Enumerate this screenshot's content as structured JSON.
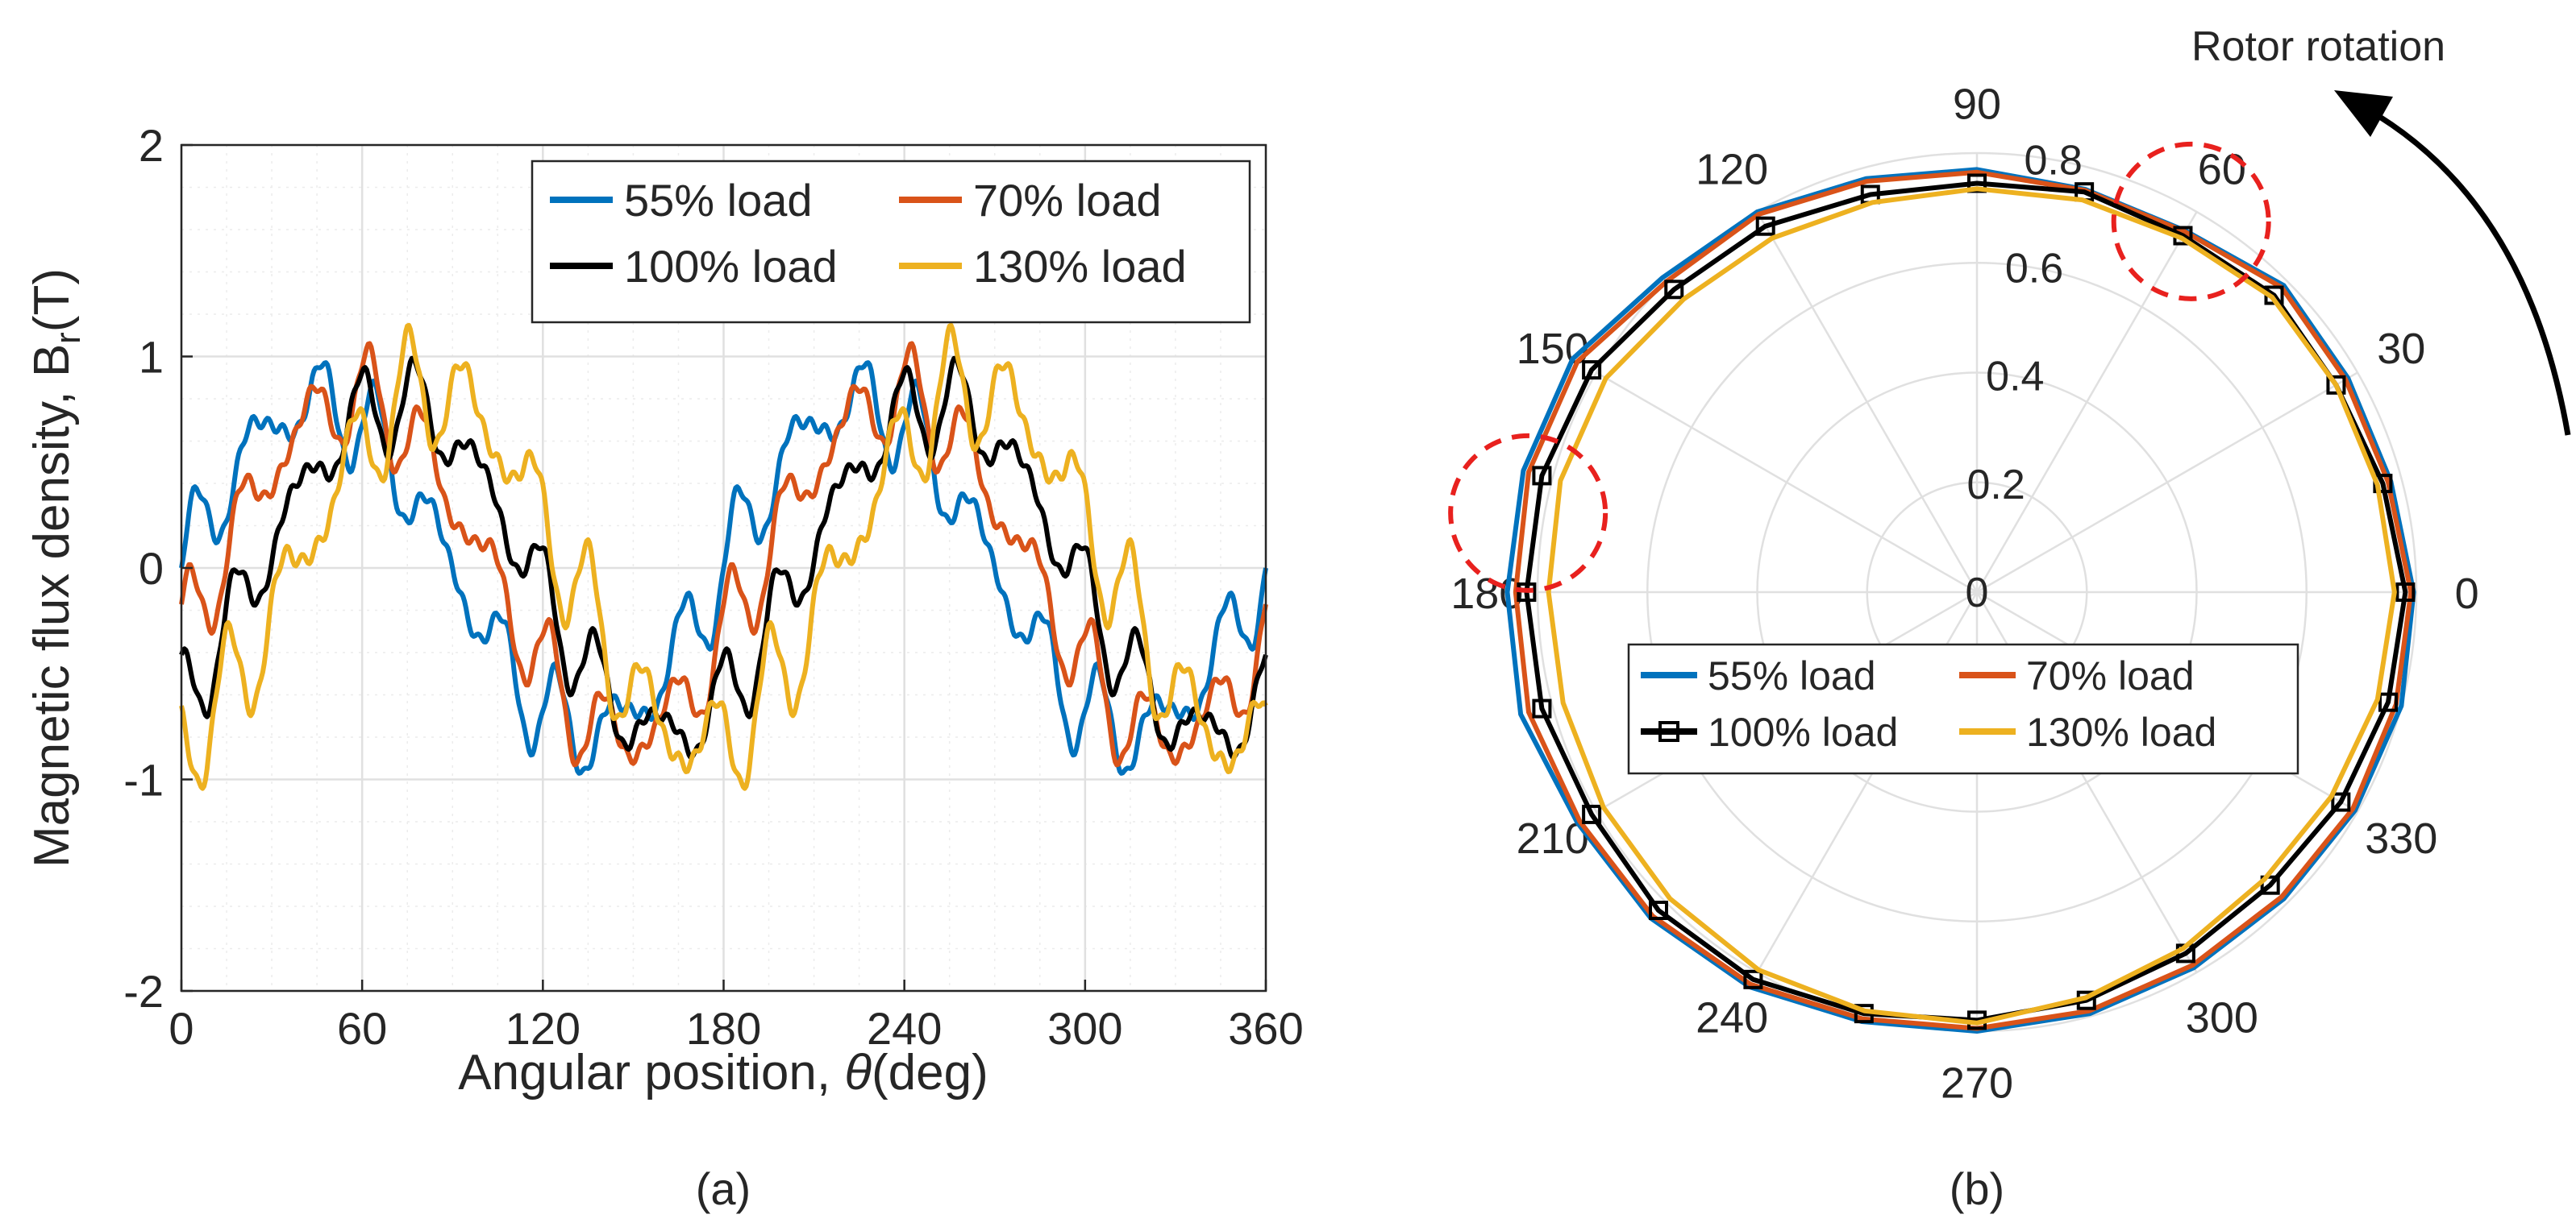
{
  "figure": {
    "panel_a_label": "(a)",
    "panel_b_label": "(b)",
    "rotor_rotation_label": "Rotor rotation"
  },
  "colors": {
    "s55": "#0072BD",
    "s70": "#D95319",
    "s100": "#000000",
    "s130": "#EDB120",
    "grid_major": "#e0e0e0",
    "grid_minor": "#ececec",
    "annotation": "#e8211e"
  },
  "chart_data": [
    {
      "type": "line",
      "title": "",
      "xlabel_text": "Angular position, ",
      "xlabel_symbol": "θ",
      "xlabel_unit": "(deg)",
      "ylabel_text": "Magnetic flux density, B",
      "ylabel_sub": "r",
      "ylabel_unit": "(T)",
      "xlim": [
        0,
        360
      ],
      "ylim": [
        -2,
        2
      ],
      "xticks": [
        0,
        60,
        120,
        180,
        240,
        300,
        360
      ],
      "yticks": [
        -2,
        -1,
        0,
        1,
        2
      ],
      "grid": true,
      "minor_grid": true,
      "legend": {
        "placement": "top-right",
        "entries": [
          "55% load",
          "70% load",
          "100% load",
          "130% load"
        ]
      },
      "series": [
        {
          "name": "55% load",
          "color_key": "s55",
          "amplitude": 0.78,
          "phase_shift_deg": 0,
          "ripple": 0.28,
          "ripple_harmonic": 18
        },
        {
          "name": "70% load",
          "color_key": "s70",
          "amplitude": 0.8,
          "phase_shift_deg": 12,
          "ripple": 0.28,
          "ripple_harmonic": 18
        },
        {
          "name": "100% load",
          "color_key": "s100",
          "amplitude": 0.78,
          "phase_shift_deg": 26,
          "ripple": 0.26,
          "ripple_harmonic": 18
        },
        {
          "name": "130% load",
          "color_key": "s130",
          "amplitude": 0.84,
          "phase_shift_deg": 38,
          "ripple": 0.34,
          "ripple_harmonic": 18
        }
      ]
    },
    {
      "type": "polar_line",
      "title": "",
      "rlim": [
        0,
        0.8
      ],
      "rticks": [
        0,
        0.2,
        0.4,
        0.6,
        0.8
      ],
      "angle_ticks": [
        0,
        30,
        60,
        90,
        120,
        150,
        180,
        210,
        240,
        270,
        300,
        330
      ],
      "grid": true,
      "legend": {
        "placement": "center-bottom",
        "entries": [
          "55% load",
          "70% load",
          "100% load",
          "130% load"
        ]
      },
      "sample_step_deg": 15,
      "series": [
        {
          "name": "55% load",
          "color_key": "s55",
          "marker": "none",
          "r": [
            0.795,
            0.78,
            0.78,
            0.79,
            0.76,
            0.76,
            0.77,
            0.78,
            0.8,
            0.81,
            0.85,
            0.855,
            0.855,
            0.86,
            0.84,
            0.84,
            0.83,
            0.81,
            0.8,
            0.795,
            0.79,
            0.79,
            0.795,
            0.8
          ]
        },
        {
          "name": "70% load",
          "color_key": "s70",
          "marker": "none",
          "r": [
            0.79,
            0.775,
            0.775,
            0.785,
            0.758,
            0.758,
            0.765,
            0.775,
            0.795,
            0.8,
            0.84,
            0.845,
            0.84,
            0.845,
            0.835,
            0.835,
            0.825,
            0.805,
            0.795,
            0.79,
            0.785,
            0.785,
            0.79,
            0.79
          ]
        },
        {
          "name": "100% load",
          "color_key": "s100",
          "marker": "square",
          "r": [
            0.78,
            0.765,
            0.755,
            0.765,
            0.75,
            0.755,
            0.745,
            0.75,
            0.77,
            0.78,
            0.81,
            0.82,
            0.82,
            0.82,
            0.81,
            0.82,
            0.815,
            0.795,
            0.78,
            0.77,
            0.76,
            0.755,
            0.765,
            0.775
          ]
        },
        {
          "name": "130% load",
          "color_key": "s130",
          "marker": "none",
          "r": [
            0.76,
            0.755,
            0.755,
            0.76,
            0.745,
            0.74,
            0.735,
            0.735,
            0.745,
            0.755,
            0.78,
            0.785,
            0.78,
            0.78,
            0.785,
            0.79,
            0.795,
            0.79,
            0.785,
            0.765,
            0.75,
            0.74,
            0.745,
            0.755
          ]
        }
      ],
      "highlights": [
        {
          "label": "circled region near 60",
          "angle_deg": 60,
          "radius": 0.78
        },
        {
          "label": "circled region near 170",
          "angle_deg": 170,
          "radius": 0.83
        }
      ]
    }
  ]
}
